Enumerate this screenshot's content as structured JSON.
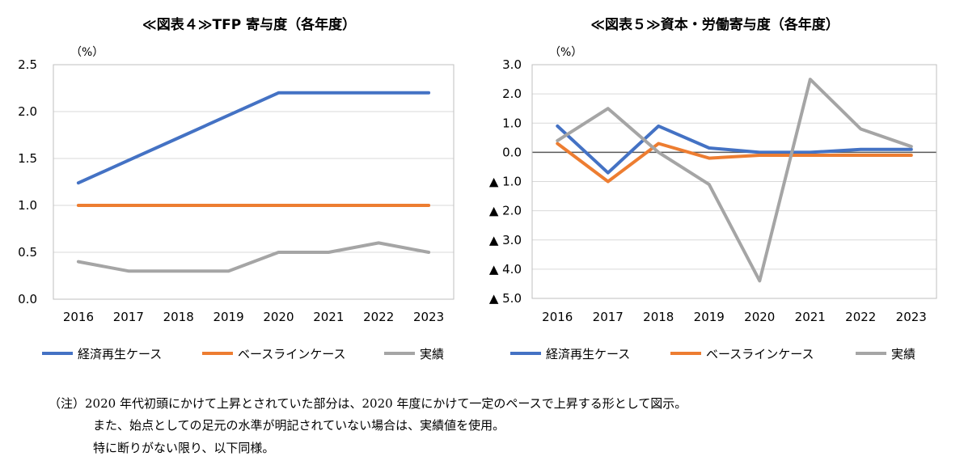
{
  "legend_labels": [
    "経済再生ケース",
    "ベースラインケース",
    "実績"
  ],
  "colors": {
    "series1": "#4472C4",
    "series2": "#ED7D31",
    "series3": "#A5A5A5",
    "grid": "#D9D9D9",
    "frame": "#BFBFBF",
    "zero": "#595959"
  },
  "chart_data": [
    {
      "type": "line",
      "title": "≪図表４≫TFP 寄与度（各年度）",
      "unit": "（%）",
      "x": [
        "2016",
        "2017",
        "2018",
        "2019",
        "2020",
        "2021",
        "2022",
        "2023"
      ],
      "ylim": [
        0,
        2.5
      ],
      "yticks": [
        0,
        0.5,
        1.0,
        1.5,
        2.0,
        2.5
      ],
      "ytick_labels": [
        "0.0",
        "0.5",
        "1.0",
        "1.5",
        "2.0",
        "2.5"
      ],
      "grid": true,
      "legend": "bottom",
      "series": [
        {
          "name": "経済再生ケース",
          "values": [
            1.24,
            1.48,
            1.72,
            1.96,
            2.2,
            2.2,
            2.2,
            2.2
          ]
        },
        {
          "name": "ベースラインケース",
          "values": [
            1.0,
            1.0,
            1.0,
            1.0,
            1.0,
            1.0,
            1.0,
            1.0
          ]
        },
        {
          "name": "実績",
          "values": [
            0.4,
            0.3,
            0.3,
            0.3,
            0.5,
            0.5,
            0.6,
            0.5
          ]
        }
      ]
    },
    {
      "type": "line",
      "title": "≪図表５≫資本・労働寄与度（各年度）",
      "unit": "（%）",
      "x": [
        "2016",
        "2017",
        "2018",
        "2019",
        "2020",
        "2021",
        "2022",
        "2023"
      ],
      "ylim": [
        -5.0,
        3.0
      ],
      "yticks": [
        3,
        2,
        1,
        0,
        -1,
        -2,
        -3,
        -4,
        -5
      ],
      "ytick_labels": [
        "3.0",
        "2.0",
        "1.0",
        "0.0",
        "▲ 1.0",
        "▲ 2.0",
        "▲ 3.0",
        "▲ 4.0",
        "▲ 5.0"
      ],
      "grid": true,
      "legend": "bottom",
      "series": [
        {
          "name": "経済再生ケース",
          "values": [
            0.9,
            -0.7,
            0.9,
            0.15,
            0.0,
            0.0,
            0.1,
            0.1
          ]
        },
        {
          "name": "ベースラインケース",
          "values": [
            0.3,
            -1.0,
            0.3,
            -0.2,
            -0.1,
            -0.1,
            -0.1,
            -0.1
          ]
        },
        {
          "name": "実績",
          "values": [
            0.4,
            1.5,
            0.0,
            -1.1,
            -4.4,
            2.5,
            0.8,
            0.2
          ]
        }
      ]
    }
  ],
  "note": {
    "lines": [
      "（注）2020 年代初頭にかけて上昇とされていた部分は、2020 年度にかけて一定のペースで上昇する形として図示。",
      "また、始点としての足元の水準が明記されていない場合は、実績値を使用。",
      "特に断りがない限り、以下同様。"
    ]
  }
}
